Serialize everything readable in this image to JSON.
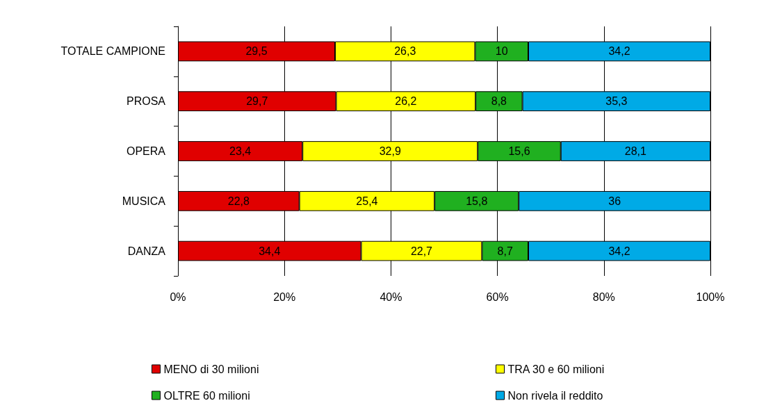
{
  "chart_data": {
    "type": "bar",
    "orientation": "horizontal",
    "stacked": true,
    "categories": [
      "TOTALE CAMPIONE",
      "PROSA",
      "OPERA",
      "MUSICA",
      "DANZA"
    ],
    "series": [
      {
        "name": "MENO di 30 milioni",
        "color": "#e00000",
        "values": [
          29.5,
          29.7,
          23.4,
          22.8,
          34.4
        ],
        "value_labels": [
          "29,5",
          "29,7",
          "23,4",
          "22,8",
          "34,4"
        ]
      },
      {
        "name": "TRA 30 e 60 milioni",
        "color": "#ffff00",
        "values": [
          26.3,
          26.2,
          32.9,
          25.4,
          22.7
        ],
        "value_labels": [
          "26,3",
          "26,2",
          "32,9",
          "25,4",
          "22,7"
        ]
      },
      {
        "name": "OLTRE 60 milioni",
        "color": "#20b020",
        "values": [
          10,
          8.8,
          15.6,
          15.8,
          8.7
        ],
        "value_labels": [
          "10",
          "8,8",
          "15,6",
          "15,8",
          "8,7"
        ]
      },
      {
        "name": "Non rivela il reddito",
        "color": "#00aae6",
        "values": [
          34.2,
          35.3,
          28.1,
          36,
          34.2
        ],
        "value_labels": [
          "34,2",
          "35,3",
          "28,1",
          "36",
          "34,2"
        ]
      }
    ],
    "xlim": [
      0,
      100
    ],
    "xticks": [
      {
        "value": 0,
        "label": "0%"
      },
      {
        "value": 20,
        "label": "20%"
      },
      {
        "value": 40,
        "label": "40%"
      },
      {
        "value": 60,
        "label": "60%"
      },
      {
        "value": 80,
        "label": "80%"
      },
      {
        "value": 100,
        "label": "100%"
      }
    ],
    "grid": "x",
    "legend": "bottom"
  }
}
